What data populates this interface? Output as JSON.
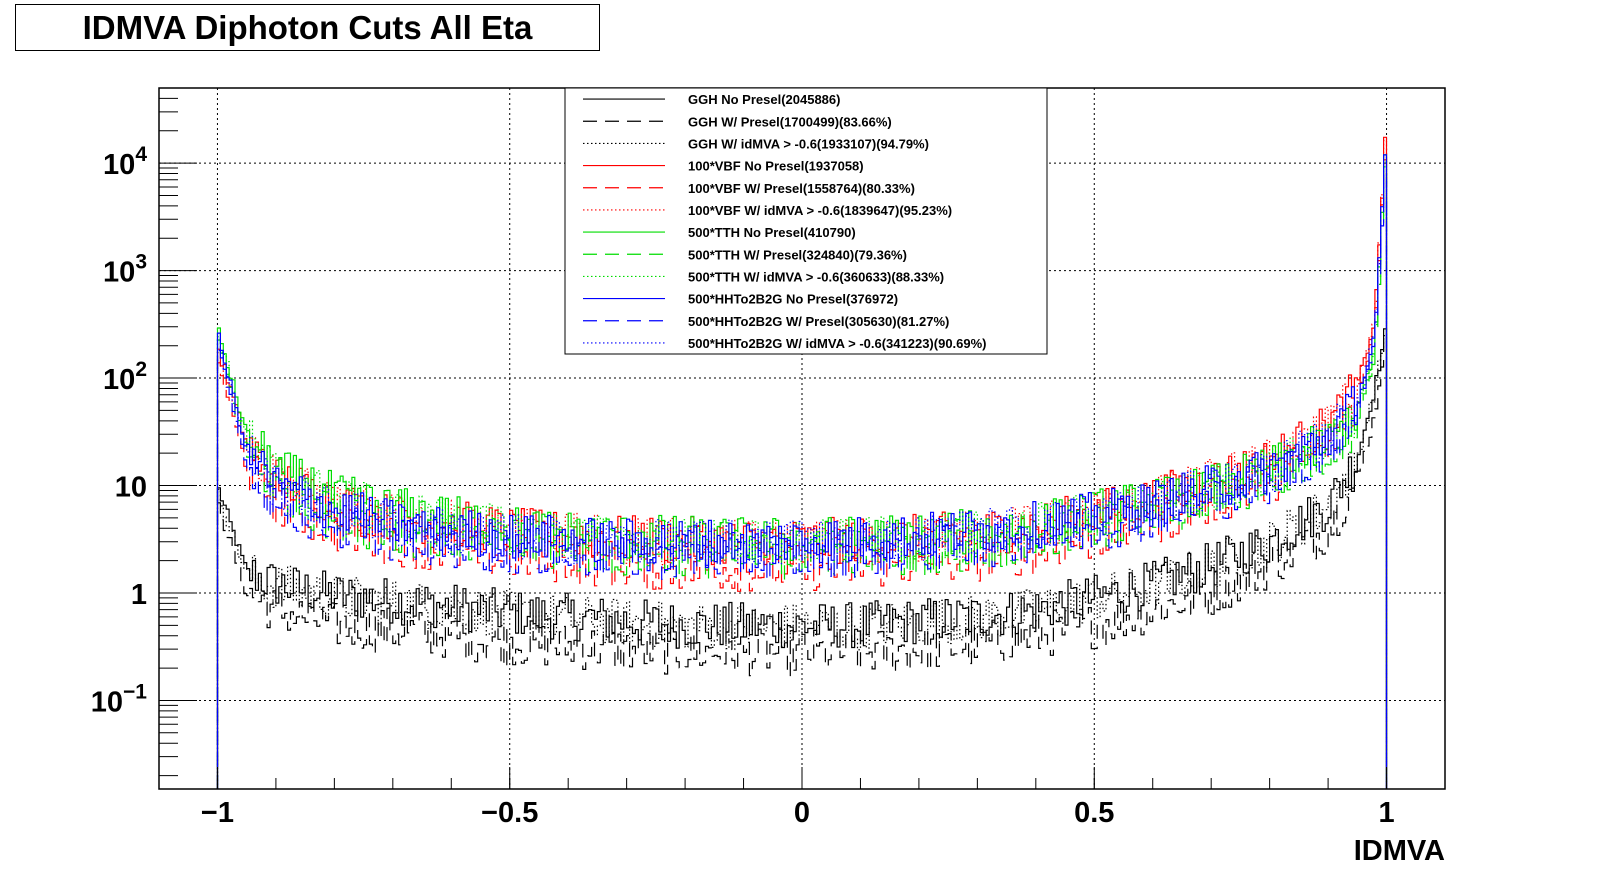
{
  "title": "IDMVA Diphoton Cuts All Eta",
  "chart_data": {
    "type": "line",
    "title": "IDMVA Diphoton Cuts All Eta",
    "xlabel": "IDMVA",
    "ylabel": "",
    "xlim": [
      -1.1,
      1.1
    ],
    "ylim": [
      0.015,
      50000
    ],
    "yscale": "log",
    "grid": true,
    "legend_position": "top-center",
    "x_ticks": [
      {
        "value": -1,
        "label": "−1"
      },
      {
        "value": -0.5,
        "label": "−0.5"
      },
      {
        "value": 0,
        "label": "0"
      },
      {
        "value": 0.5,
        "label": "0.5"
      },
      {
        "value": 1,
        "label": "1"
      }
    ],
    "y_ticks": [
      {
        "value": 0.1,
        "label": "10",
        "sup": "−1"
      },
      {
        "value": 1,
        "label": "1",
        "sup": ""
      },
      {
        "value": 10,
        "label": "10",
        "sup": ""
      },
      {
        "value": 100,
        "label": "10",
        "sup": "2"
      },
      {
        "value": 1000,
        "label": "10",
        "sup": "3"
      },
      {
        "value": 10000,
        "label": "10",
        "sup": "4"
      }
    ],
    "x": [
      -1.0,
      -0.95,
      -0.9,
      -0.8,
      -0.7,
      -0.6,
      -0.5,
      -0.4,
      -0.3,
      -0.2,
      -0.1,
      0.0,
      0.1,
      0.2,
      0.3,
      0.4,
      0.5,
      0.6,
      0.7,
      0.8,
      0.9,
      0.95,
      0.98,
      1.0
    ],
    "series": [
      {
        "name": "GGH No Presel(2045886)",
        "color": "#000000",
        "dash": "solid",
        "values": [
          10,
          1.6,
          1.2,
          0.95,
          0.85,
          0.75,
          0.65,
          0.6,
          0.55,
          0.5,
          0.5,
          0.5,
          0.5,
          0.55,
          0.6,
          0.7,
          0.9,
          1.2,
          1.8,
          3.0,
          6.5,
          18,
          80,
          300
        ]
      },
      {
        "name": "GGH W/ Presel(1700499)(83.66%)",
        "color": "#000000",
        "dash": "long",
        "values": [
          7,
          1.0,
          0.7,
          0.5,
          0.45,
          0.4,
          0.35,
          0.32,
          0.3,
          0.28,
          0.28,
          0.28,
          0.28,
          0.3,
          0.33,
          0.4,
          0.5,
          0.7,
          1.0,
          1.8,
          4.0,
          11,
          45,
          280
        ]
      },
      {
        "name": "GGH W/ idMVA > -0.6(1933107)(94.79%)",
        "color": "#000000",
        "dash": "dot",
        "values": [
          9,
          1.5,
          1.15,
          0.9,
          0.82,
          0.73,
          0.63,
          0.58,
          0.53,
          0.49,
          0.49,
          0.49,
          0.49,
          0.54,
          0.58,
          0.68,
          0.88,
          1.15,
          1.75,
          2.9,
          6.3,
          17,
          78,
          300
        ]
      },
      {
        "name": "100*VBF No Presel(1937058)",
        "color": "#ff0000",
        "dash": "solid",
        "values": [
          200,
          25,
          12,
          7,
          5,
          4.5,
          3.8,
          3.5,
          3.2,
          3.1,
          3.0,
          3.0,
          3.1,
          3.3,
          3.6,
          4.2,
          5.5,
          7.5,
          11,
          17,
          35,
          80,
          350,
          26000
        ]
      },
      {
        "name": "100*VBF W/ Presel(1558764)(80.33%)",
        "color": "#ff0000",
        "dash": "long",
        "values": [
          150,
          15,
          7,
          4,
          3,
          2.5,
          2.2,
          2.0,
          1.8,
          1.7,
          1.7,
          1.7,
          1.8,
          1.9,
          2.1,
          2.5,
          3.3,
          4.6,
          7,
          11,
          24,
          60,
          280,
          20000
        ]
      },
      {
        "name": "100*VBF W/ idMVA > -0.6(1839647)(95.23%)",
        "color": "#ff0000",
        "dash": "dot",
        "values": [
          190,
          24,
          11.5,
          6.8,
          4.9,
          4.4,
          3.7,
          3.4,
          3.1,
          3.0,
          2.9,
          2.9,
          3.0,
          3.2,
          3.5,
          4.1,
          5.3,
          7.3,
          10.7,
          16.5,
          34,
          78,
          340,
          25000
        ]
      },
      {
        "name": "500*TTH No Presel(410790)",
        "color": "#00dd00",
        "dash": "solid",
        "values": [
          300,
          30,
          14,
          8,
          6,
          5,
          4,
          3.6,
          3.3,
          3.2,
          3.1,
          3.1,
          3.2,
          3.4,
          3.7,
          4.3,
          5.6,
          7,
          9.5,
          14,
          25,
          50,
          180,
          19000
        ]
      },
      {
        "name": "500*TTH W/ Presel(324840)(79.36%)",
        "color": "#00dd00",
        "dash": "long",
        "values": [
          250,
          20,
          9,
          5,
          3.8,
          3.2,
          2.8,
          2.5,
          2.3,
          2.2,
          2.2,
          2.2,
          2.3,
          2.4,
          2.6,
          3.0,
          3.9,
          5.2,
          7.5,
          11,
          20,
          40,
          150,
          15000
        ]
      },
      {
        "name": "500*TTH W/ idMVA > -0.6(360633)(88.33%)",
        "color": "#00dd00",
        "dash": "dot",
        "values": [
          280,
          28,
          13,
          7.5,
          5.6,
          4.7,
          3.8,
          3.4,
          3.1,
          3.0,
          2.9,
          2.9,
          3.0,
          3.2,
          3.5,
          4.1,
          5.3,
          6.7,
          9.1,
          13.5,
          24,
          48,
          175,
          18500
        ]
      },
      {
        "name": "500*HHTo2B2G No Presel(376972)",
        "color": "#0000ff",
        "dash": "solid",
        "values": [
          260,
          22,
          10,
          6,
          4.5,
          3.8,
          3.4,
          3.2,
          3.0,
          3.0,
          3.0,
          3.1,
          3.2,
          3.4,
          3.8,
          4.3,
          5.3,
          6.8,
          9.5,
          14,
          28,
          60,
          250,
          18000
        ]
      },
      {
        "name": "500*HHTo2B2G W/ Presel(305630)(81.27%)",
        "color": "#0000ff",
        "dash": "long",
        "values": [
          200,
          16,
          7,
          4.2,
          3.3,
          2.8,
          2.5,
          2.3,
          2.2,
          2.2,
          2.2,
          2.2,
          2.3,
          2.5,
          2.8,
          3.2,
          4.0,
          5.2,
          7.3,
          11,
          22,
          48,
          200,
          14000
        ]
      },
      {
        "name": "500*HHTo2B2G W/ idMVA > -0.6(341223)(90.69%)",
        "color": "#0000ff",
        "dash": "dot",
        "values": [
          250,
          21,
          9.6,
          5.8,
          4.3,
          3.7,
          3.3,
          3.1,
          2.9,
          2.9,
          2.9,
          3.0,
          3.1,
          3.3,
          3.7,
          4.2,
          5.1,
          6.6,
          9.2,
          13.6,
          27,
          58,
          240,
          17500
        ]
      }
    ]
  }
}
